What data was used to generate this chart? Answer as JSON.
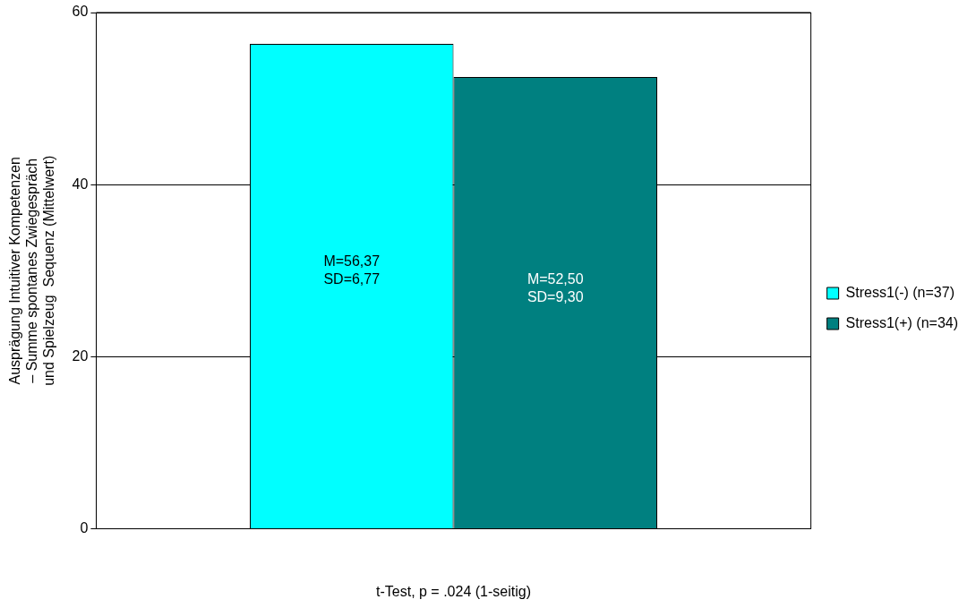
{
  "chart_data": {
    "type": "bar",
    "categories": [
      null
    ],
    "series": [
      {
        "name": "Stress1(-) (n=37)",
        "color": "#00ffff",
        "values": [
          56.37
        ],
        "value_labels": [
          "M=56,37\nSD=6,77"
        ]
      },
      {
        "name": "Stress1(+) (n=34)",
        "color": "#008080",
        "values": [
          52.5
        ],
        "value_labels": [
          "M=52,50\nSD=9,30"
        ]
      }
    ],
    "ylabel": "Ausprägung Intuitiver Kompetenzen\n– Summe spontanes Zwiegespräch\nund Spielzeug  Sequenz (Mittelwert)",
    "xlabel": "t-Test, p = .024 (1-seitig)",
    "ylim": [
      0,
      60
    ],
    "yticks": [
      0,
      20,
      40,
      60
    ],
    "grid": "y",
    "legend": "right"
  }
}
